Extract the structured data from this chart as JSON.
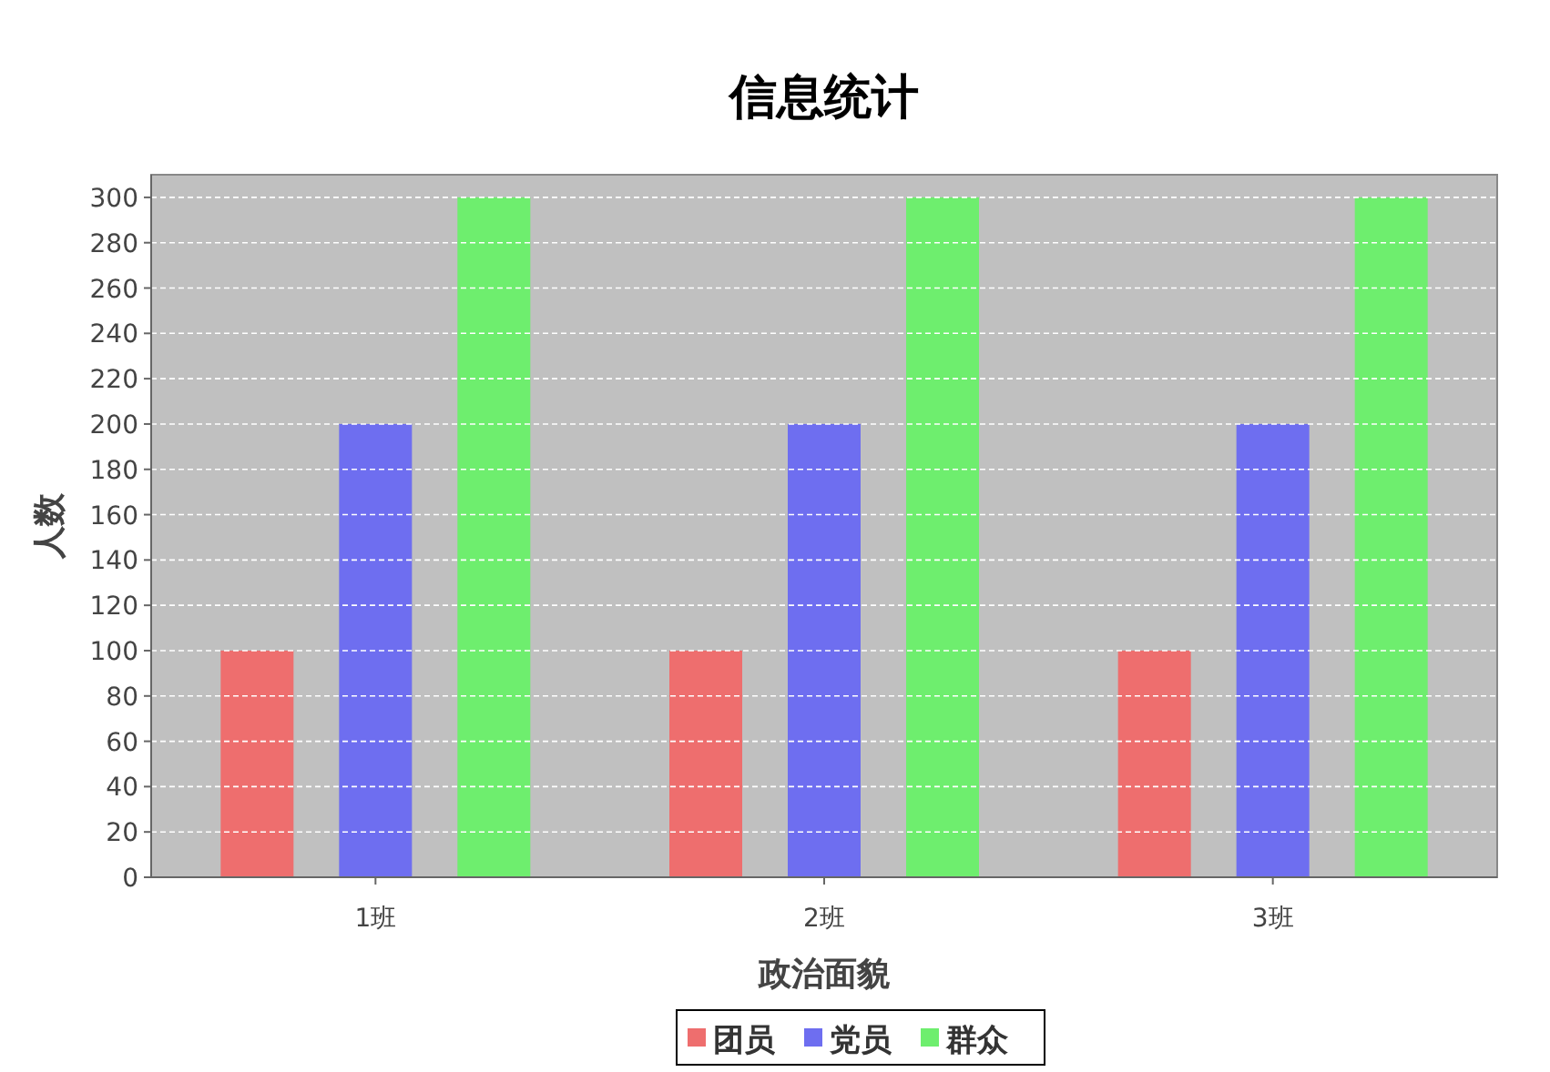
{
  "chart_data": {
    "type": "bar",
    "title": "信息统计",
    "xlabel": "政治面貌",
    "ylabel": "人数",
    "categories": [
      "1班",
      "2班",
      "3班"
    ],
    "series": [
      {
        "name": "团员",
        "color": "#ee6e6e",
        "values": [
          100,
          100,
          100
        ]
      },
      {
        "name": "党员",
        "color": "#6e6ef0",
        "values": [
          200,
          200,
          200
        ]
      },
      {
        "name": "群众",
        "color": "#6eee6e",
        "values": [
          300,
          300,
          300
        ]
      }
    ],
    "ylim": [
      0,
      310
    ],
    "yticks": [
      0,
      20,
      40,
      60,
      80,
      100,
      120,
      140,
      160,
      180,
      200,
      220,
      240,
      260,
      280,
      300
    ],
    "grid": "y",
    "legend": "bottom"
  }
}
